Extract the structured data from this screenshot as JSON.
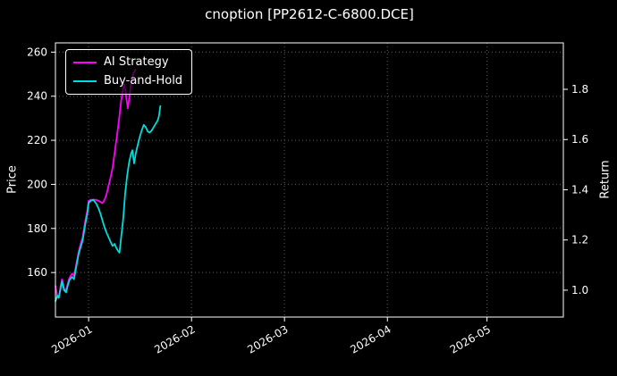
{
  "figure": {
    "background_color": "#000000",
    "text_color": "#ffffff",
    "spine_color": "#ffffff"
  },
  "chart_data": {
    "type": "line",
    "title": "cnoption [PP2612-C-6800.DCE]",
    "ylabel_left": "Price",
    "ylabel_right": "Return",
    "grid": {
      "show": true,
      "style": "dotted",
      "color": "#5d5d5d"
    },
    "legend": {
      "position": "upper-left"
    },
    "x_axis": {
      "unit": "date",
      "start_date": "2025-12-22",
      "range_days": [
        0,
        153
      ],
      "ticks": [
        {
          "day": 10,
          "label": "2026-01"
        },
        {
          "day": 41,
          "label": "2026-02"
        },
        {
          "day": 69,
          "label": "2026-03"
        },
        {
          "day": 100,
          "label": "2026-04"
        },
        {
          "day": 130,
          "label": "2026-05"
        }
      ]
    },
    "left_axis": {
      "label": "Price",
      "ticks": [
        160,
        180,
        200,
        220,
        240,
        260
      ],
      "range": [
        139.8,
        264.2
      ]
    },
    "right_axis": {
      "label": "Return",
      "tick_values": [
        1.0,
        1.2,
        1.4,
        1.6,
        1.8
      ],
      "tick_labels": [
        "1.0",
        "1.2",
        "1.4",
        "1.6",
        "1.8"
      ],
      "range": [
        0.893,
        1.985
      ]
    },
    "series": [
      {
        "name": "AI Strategy",
        "color": "#ff00ff",
        "axis": "price",
        "points": [
          [
            0,
            154
          ],
          [
            0.6,
            149
          ],
          [
            1,
            148.5
          ],
          [
            1.6,
            154
          ],
          [
            2,
            157
          ],
          [
            2.6,
            152.5
          ],
          [
            3.2,
            152
          ],
          [
            3.8,
            155.5
          ],
          [
            4.2,
            157.5
          ],
          [
            5,
            159.5
          ],
          [
            5.6,
            158.5
          ],
          [
            6.2,
            163
          ],
          [
            7,
            169.5
          ],
          [
            7.6,
            173
          ],
          [
            8.2,
            176
          ],
          [
            9,
            183.5
          ],
          [
            9.6,
            188
          ],
          [
            10,
            192.5
          ],
          [
            10.6,
            193
          ],
          [
            11.4,
            193
          ],
          [
            12.2,
            193
          ],
          [
            13,
            192.5
          ],
          [
            13.6,
            192
          ],
          [
            14.2,
            191.5
          ],
          [
            14.8,
            193
          ],
          [
            15.4,
            195.5
          ],
          [
            16,
            199.5
          ],
          [
            16.6,
            203
          ],
          [
            17.2,
            207.5
          ],
          [
            18,
            216
          ],
          [
            18.6,
            223
          ],
          [
            19.2,
            230
          ],
          [
            19.8,
            238
          ],
          [
            20.4,
            243.5
          ],
          [
            20.8,
            245.5
          ],
          [
            21.4,
            239
          ],
          [
            21.8,
            234.5
          ],
          [
            22.4,
            241
          ],
          [
            22.8,
            246.5
          ],
          [
            23.4,
            250
          ],
          [
            24,
            252
          ]
        ]
      },
      {
        "name": "Buy-and-Hold",
        "color": "#00dcdc",
        "axis": "price",
        "points": [
          [
            0,
            147
          ],
          [
            0.6,
            149.5
          ],
          [
            1,
            148.5
          ],
          [
            1.6,
            153
          ],
          [
            2,
            156
          ],
          [
            2.6,
            152
          ],
          [
            3.2,
            151
          ],
          [
            3.8,
            154.5
          ],
          [
            4.2,
            156.5
          ],
          [
            5,
            158
          ],
          [
            5.6,
            157
          ],
          [
            6.2,
            162
          ],
          [
            7,
            168.5
          ],
          [
            7.6,
            171.5
          ],
          [
            8.2,
            174.5
          ],
          [
            9,
            182
          ],
          [
            9.6,
            186.5
          ],
          [
            10,
            191.5
          ],
          [
            10.6,
            192.5
          ],
          [
            11.4,
            193
          ],
          [
            12.2,
            191.5
          ],
          [
            13,
            189
          ],
          [
            13.6,
            186.5
          ],
          [
            14.2,
            183.5
          ],
          [
            14.8,
            180.5
          ],
          [
            15.4,
            178
          ],
          [
            16,
            176
          ],
          [
            16.6,
            174
          ],
          [
            17.2,
            172
          ],
          [
            17.8,
            173
          ],
          [
            18.4,
            171
          ],
          [
            19,
            169.5
          ],
          [
            19.3,
            169
          ],
          [
            19.8,
            176
          ],
          [
            20.4,
            184
          ],
          [
            21,
            196
          ],
          [
            21.6,
            204
          ],
          [
            22.2,
            210
          ],
          [
            22.8,
            214
          ],
          [
            23.2,
            215.5
          ],
          [
            23.7,
            209.5
          ],
          [
            24.2,
            214
          ],
          [
            24.8,
            218
          ],
          [
            25.4,
            221.5
          ],
          [
            26,
            224.5
          ],
          [
            26.6,
            227
          ],
          [
            27.2,
            226
          ],
          [
            27.8,
            224
          ],
          [
            28.4,
            223.5
          ],
          [
            29,
            224.5
          ],
          [
            29.6,
            226
          ],
          [
            30.2,
            227.5
          ],
          [
            30.8,
            229
          ],
          [
            31.2,
            231
          ],
          [
            31.6,
            235.5
          ]
        ]
      }
    ]
  }
}
